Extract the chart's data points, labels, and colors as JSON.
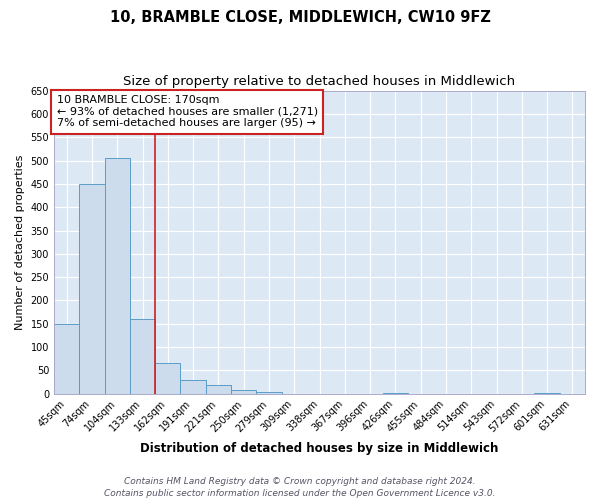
{
  "title": "10, BRAMBLE CLOSE, MIDDLEWICH, CW10 9FZ",
  "subtitle": "Size of property relative to detached houses in Middlewich",
  "xlabel": "Distribution of detached houses by size in Middlewich",
  "ylabel": "Number of detached properties",
  "categories": [
    "45sqm",
    "74sqm",
    "104sqm",
    "133sqm",
    "162sqm",
    "191sqm",
    "221sqm",
    "250sqm",
    "279sqm",
    "309sqm",
    "338sqm",
    "367sqm",
    "396sqm",
    "426sqm",
    "455sqm",
    "484sqm",
    "514sqm",
    "543sqm",
    "572sqm",
    "601sqm",
    "631sqm"
  ],
  "values": [
    150,
    450,
    505,
    160,
    65,
    30,
    18,
    8,
    3,
    0,
    0,
    0,
    0,
    2,
    0,
    0,
    0,
    0,
    0,
    2,
    0
  ],
  "bar_color": "#ccdcec",
  "bar_edge_color": "#5b9dc8",
  "background_color": "#dce8f4",
  "red_line_x": 3.5,
  "annotation_title": "10 BRAMBLE CLOSE: 170sqm",
  "annotation_line1": "← 93% of detached houses are smaller (1,271)",
  "annotation_line2": "7% of semi-detached houses are larger (95) →",
  "annotation_box_facecolor": "#ffffff",
  "annotation_box_edgecolor": "#cc2222",
  "ylim": [
    0,
    650
  ],
  "yticks": [
    0,
    50,
    100,
    150,
    200,
    250,
    300,
    350,
    400,
    450,
    500,
    550,
    600,
    650
  ],
  "fig_bg": "#ffffff",
  "footer_line1": "Contains HM Land Registry data © Crown copyright and database right 2024.",
  "footer_line2": "Contains public sector information licensed under the Open Government Licence v3.0.",
  "title_fontsize": 10.5,
  "subtitle_fontsize": 9.5,
  "xlabel_fontsize": 8.5,
  "ylabel_fontsize": 8,
  "tick_fontsize": 7,
  "footer_fontsize": 6.5,
  "annotation_fontsize": 8
}
